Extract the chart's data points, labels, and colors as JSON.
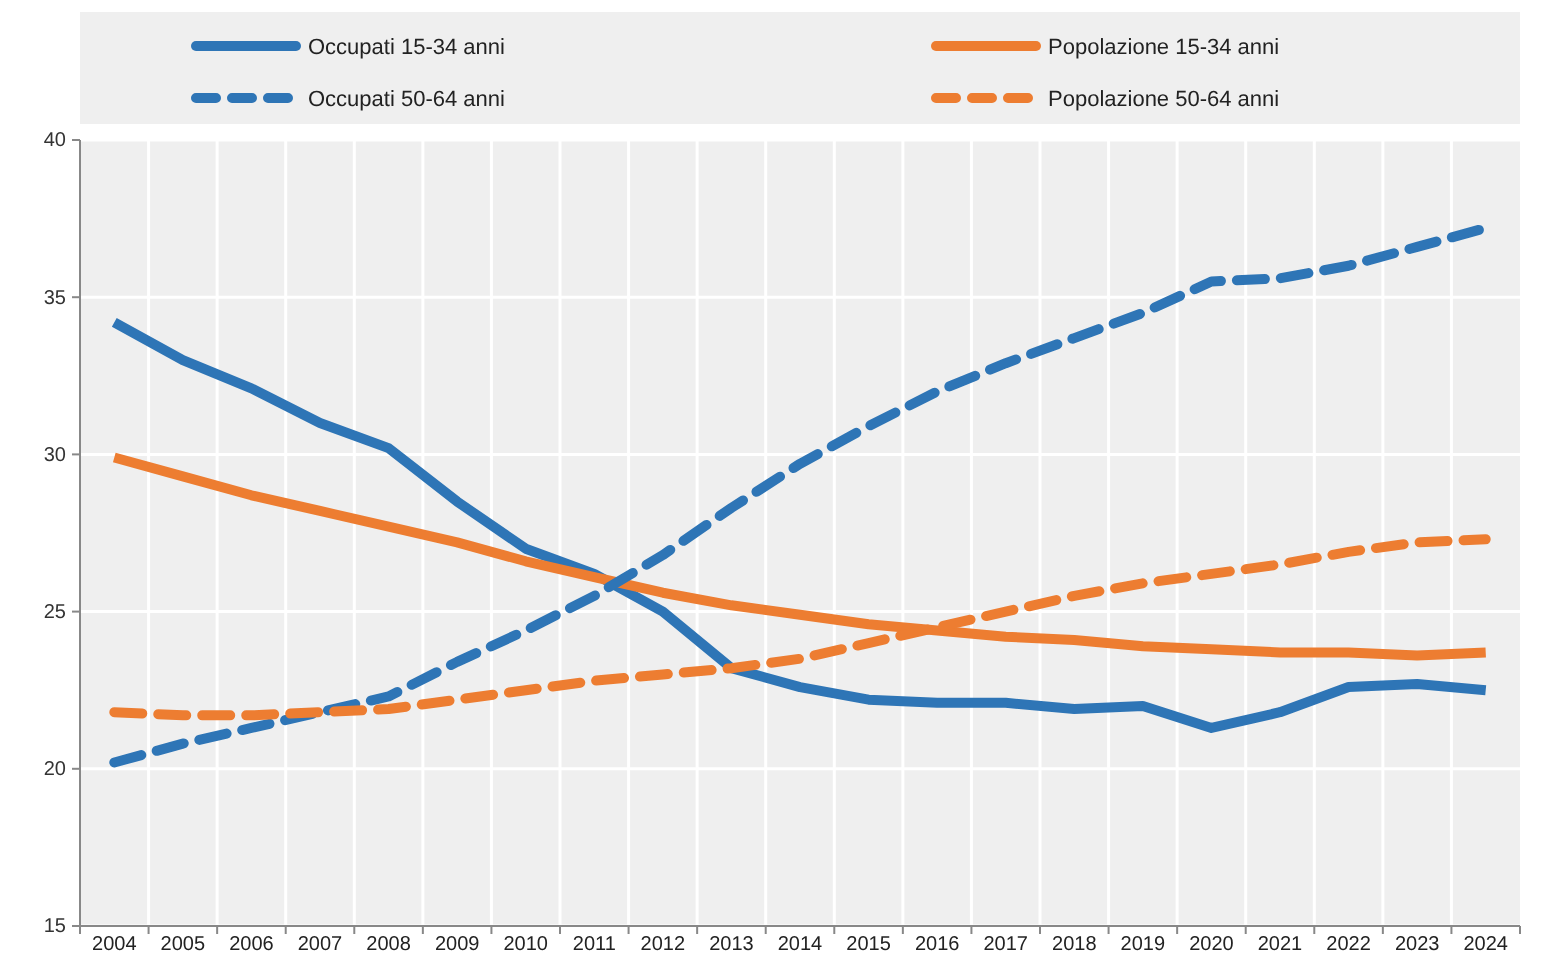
{
  "chart_data": {
    "type": "line",
    "categories": [
      "2004",
      "2005",
      "2006",
      "2007",
      "2008",
      "2009",
      "2010",
      "2011",
      "2012",
      "2013",
      "2014",
      "2015",
      "2016",
      "2017",
      "2018",
      "2019",
      "2020",
      "2021",
      "2022",
      "2023",
      "2024"
    ],
    "series": [
      {
        "name": "Occupati 15-34 anni",
        "color": "#2e75b6",
        "line_style": "solid",
        "values": [
          34.2,
          33.0,
          32.1,
          31.0,
          30.2,
          28.5,
          27.0,
          26.2,
          25.0,
          23.2,
          22.6,
          22.2,
          22.1,
          22.1,
          21.9,
          22.0,
          21.3,
          21.8,
          22.6,
          22.7,
          22.5
        ]
      },
      {
        "name": "Popolazione 15-34 anni",
        "color": "#ed7d31",
        "line_style": "solid",
        "values": [
          29.9,
          29.3,
          28.7,
          28.2,
          27.7,
          27.2,
          26.6,
          26.1,
          25.6,
          25.2,
          24.9,
          24.6,
          24.4,
          24.2,
          24.1,
          23.9,
          23.8,
          23.7,
          23.7,
          23.6,
          23.7
        ]
      },
      {
        "name": "Occupati 50-64 anni",
        "color": "#2e75b6",
        "line_style": "dashed",
        "values": [
          20.2,
          20.8,
          21.3,
          21.8,
          22.3,
          23.4,
          24.4,
          25.5,
          26.8,
          28.3,
          29.7,
          30.9,
          32.0,
          32.9,
          33.7,
          34.5,
          35.5,
          35.6,
          36.0,
          36.6,
          37.2
        ]
      },
      {
        "name": "Popolazione 50-64 anni",
        "color": "#ed7d31",
        "line_style": "dashed",
        "values": [
          21.8,
          21.7,
          21.7,
          21.8,
          21.9,
          22.2,
          22.5,
          22.8,
          23.0,
          23.2,
          23.5,
          24.0,
          24.5,
          25.0,
          25.5,
          25.9,
          26.2,
          26.5,
          26.9,
          27.2,
          27.3
        ]
      }
    ],
    "ylim": [
      15,
      40
    ],
    "yticks": [
      15,
      20,
      25,
      30,
      35,
      40
    ],
    "grid": true,
    "legend": "top",
    "marker": "none"
  }
}
